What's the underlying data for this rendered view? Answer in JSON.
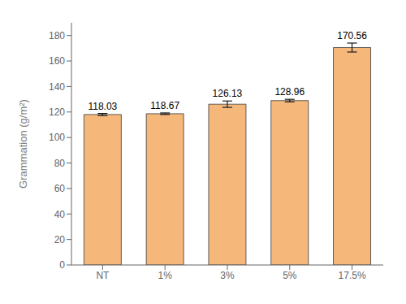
{
  "chart_data": {
    "type": "bar",
    "ylabel": "Grammation (g/m²)",
    "categories": [
      "NT",
      "1%",
      "3%",
      "5%",
      "17.5%"
    ],
    "values": [
      118.03,
      118.67,
      126.13,
      128.96,
      170.56
    ],
    "errors": [
      0.8,
      0.6,
      2.5,
      1.0,
      3.5
    ],
    "color": "#F5B87A",
    "ylim": [
      0,
      190
    ],
    "yticks": [
      0,
      20,
      40,
      60,
      80,
      100,
      120,
      140,
      160,
      180
    ],
    "grid": false,
    "data_labels": true
  }
}
